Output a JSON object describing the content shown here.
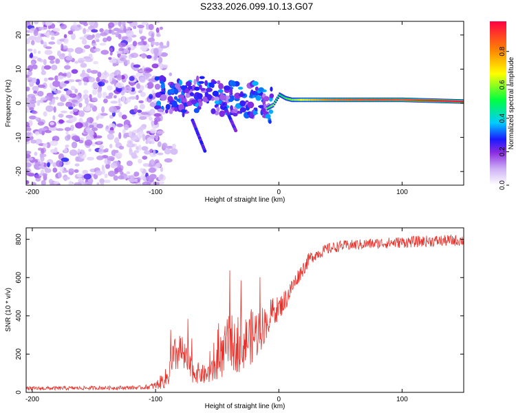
{
  "title": "S233.2026.099.10.13.G07",
  "colors": {
    "snr_line": "#e8302a",
    "frame": "#000000",
    "colormap": [
      "#ffffff",
      "#cdb0f5",
      "#8a2be2",
      "#1a1aff",
      "#00ccff",
      "#00ff40",
      "#ffff00",
      "#ff8800",
      "#ff0044"
    ]
  },
  "chart_data": [
    {
      "type": "heatmap",
      "title": "S233.2026.099.10.13.G07",
      "xlabel": "Height of straight line (km)",
      "ylabel": "Frequency (Hz)",
      "xlim": [
        -205,
        150
      ],
      "ylim": [
        -24,
        24
      ],
      "xticks": [
        -200,
        -100,
        0,
        100
      ],
      "yticks": [
        -20,
        -10,
        0,
        10,
        20
      ],
      "colorbar": {
        "label": "Normalized spectral amplitude",
        "range": [
          0.0,
          0.98
        ],
        "ticks": [
          "0.0",
          "0.2",
          "0.4",
          "0.6",
          "0.8"
        ],
        "tick_values": [
          0.0,
          0.2,
          0.4,
          0.6,
          0.8
        ]
      },
      "features": {
        "noise_region_km": [
          -205,
          -95
        ],
        "noise_amplitude": 0.15,
        "main_tone_track": {
          "x": [
            -100,
            -90,
            -80,
            -70,
            -60,
            -50,
            -40,
            -30,
            -20,
            -10,
            -5,
            0,
            5,
            10,
            20,
            40,
            60,
            80,
            100,
            120,
            150
          ],
          "freq": [
            3,
            2,
            1.5,
            2.5,
            3,
            2,
            1.5,
            1,
            1,
            -1.5,
            -0.5,
            2.5,
            1.5,
            1,
            1,
            1,
            1,
            1,
            1,
            0.8,
            0.5
          ],
          "amplitude": [
            0.25,
            0.3,
            0.3,
            0.3,
            0.3,
            0.3,
            0.3,
            0.3,
            0.35,
            0.55,
            0.6,
            0.5,
            0.55,
            0.6,
            0.7,
            0.85,
            0.9,
            0.92,
            0.9,
            0.95,
            0.98
          ]
        }
      }
    },
    {
      "type": "line",
      "xlabel": "Height of straight line (km)",
      "ylabel": "SNR (10 * v/v)",
      "xlim": [
        -205,
        150
      ],
      "ylim": [
        0,
        860
      ],
      "xticks": [
        -200,
        -100,
        0,
        100
      ],
      "yticks": [
        0,
        200,
        400,
        600,
        800
      ],
      "series": [
        {
          "name": "SNR",
          "envelope_x": [
            -205,
            -110,
            -100,
            -90,
            -85,
            -80,
            -75,
            -70,
            -60,
            -50,
            -45,
            -40,
            -35,
            -30,
            -25,
            -20,
            -15,
            -10,
            -5,
            0,
            5,
            10,
            15,
            20,
            25,
            30,
            40,
            50,
            60,
            70,
            80,
            100,
            120,
            150
          ],
          "envelope_y": [
            20,
            25,
            35,
            80,
            180,
            220,
            160,
            110,
            90,
            120,
            200,
            280,
            230,
            240,
            280,
            300,
            330,
            370,
            420,
            440,
            480,
            540,
            600,
            650,
            700,
            720,
            750,
            765,
            770,
            775,
            778,
            785,
            790,
            795
          ],
          "noise_amplitude": [
            10,
            10,
            20,
            60,
            100,
            100,
            80,
            60,
            50,
            70,
            120,
            150,
            130,
            130,
            140,
            150,
            120,
            90,
            80,
            60,
            60,
            50,
            40,
            40,
            35,
            30,
            30,
            28,
            28,
            28,
            28,
            30,
            30,
            30
          ]
        }
      ]
    }
  ]
}
